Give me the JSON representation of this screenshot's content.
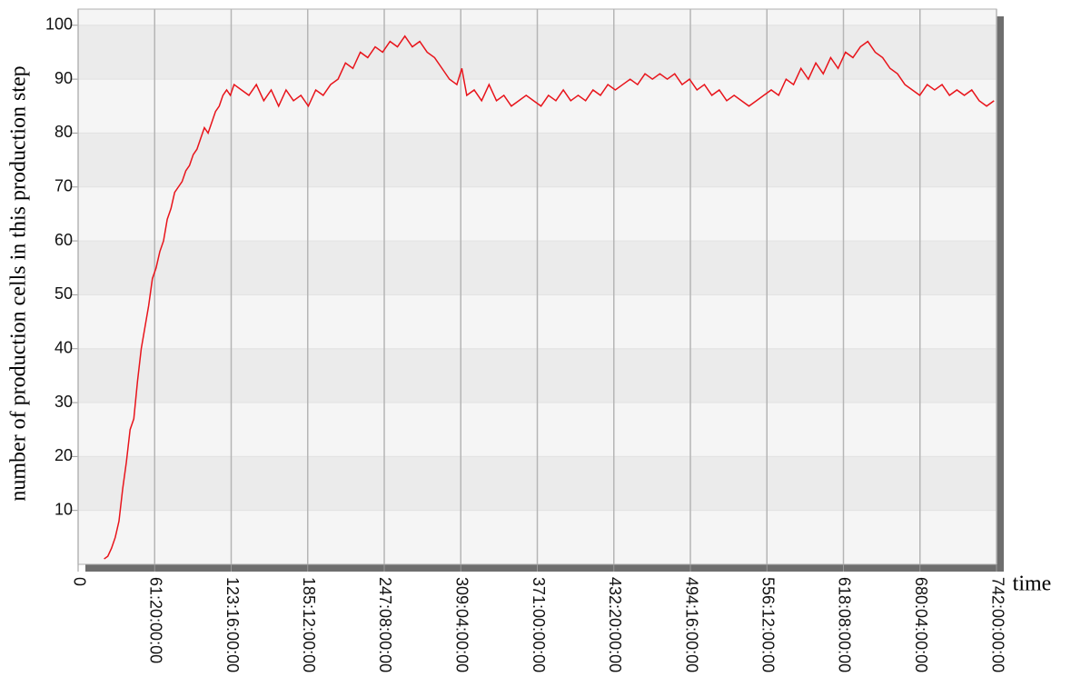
{
  "chart_data": {
    "type": "line",
    "y_label": "number of production cells in this production step",
    "x_label": "time",
    "xlim": [
      0,
      742
    ],
    "ylim": [
      0,
      103
    ],
    "xticks": [
      0,
      {
        "value": 61.8333,
        "label": "61:20:00:00"
      },
      {
        "value": 123.6667,
        "label": "123:16:00:00"
      },
      {
        "value": 185.5,
        "label": "185:12:00:00"
      },
      {
        "value": 247.3333,
        "label": "247:08:00:00"
      },
      {
        "value": 309.1667,
        "label": "309:04:00:00"
      },
      {
        "value": 371,
        "label": "371:00:00:00"
      },
      {
        "value": 432.8333,
        "label": "432:20:00:00"
      },
      {
        "value": 494.6667,
        "label": "494:16:00:00"
      },
      {
        "value": 556.5,
        "label": "556:12:00:00"
      },
      {
        "value": 618.3333,
        "label": "618:08:00:00"
      },
      {
        "value": 680.1667,
        "label": "680:04:00:00"
      },
      {
        "value": 742,
        "label": "742:00:00:00"
      }
    ],
    "yticks": [
      10,
      20,
      30,
      40,
      50,
      60,
      70,
      80,
      90,
      100
    ],
    "grid": true,
    "series": [
      {
        "color": "#e8141b",
        "x": [
          21,
          24,
          27,
          30,
          33,
          36,
          39,
          42,
          45,
          48,
          51,
          54,
          57,
          60,
          63,
          66,
          69,
          72,
          75,
          78,
          81,
          84,
          87,
          90,
          93,
          96,
          99,
          102,
          105,
          108,
          111,
          114,
          117,
          120,
          123,
          126,
          132,
          138,
          144,
          150,
          156,
          162,
          168,
          174,
          180,
          186,
          192,
          198,
          204,
          210,
          216,
          222,
          228,
          234,
          240,
          246,
          252,
          258,
          264,
          270,
          276,
          282,
          288,
          294,
          300,
          306,
          310,
          314,
          320,
          326,
          332,
          338,
          344,
          350,
          356,
          362,
          368,
          374,
          380,
          386,
          392,
          398,
          404,
          410,
          416,
          422,
          428,
          434,
          440,
          446,
          452,
          458,
          464,
          470,
          476,
          482,
          488,
          494,
          500,
          506,
          512,
          518,
          524,
          530,
          536,
          542,
          548,
          554,
          560,
          566,
          572,
          578,
          584,
          590,
          596,
          602,
          608,
          614,
          620,
          626,
          632,
          638,
          644,
          650,
          656,
          662,
          668,
          674,
          680,
          686,
          692,
          698,
          704,
          710,
          716,
          722,
          728,
          734,
          740
        ],
        "values": [
          1,
          1.5,
          3,
          5,
          8,
          14,
          19,
          25,
          27,
          34,
          40,
          44,
          48,
          53,
          55,
          58,
          60,
          64,
          66,
          69,
          70,
          71,
          73,
          74,
          76,
          77,
          79,
          81,
          80,
          82,
          84,
          85,
          87,
          88,
          87,
          89,
          88,
          87,
          89,
          86,
          88,
          85,
          88,
          86,
          87,
          85,
          88,
          87,
          89,
          90,
          93,
          92,
          95,
          94,
          96,
          95,
          97,
          96,
          98,
          96,
          97,
          95,
          94,
          92,
          90,
          89,
          92,
          87,
          88,
          86,
          89,
          86,
          87,
          85,
          86,
          87,
          86,
          85,
          87,
          86,
          88,
          86,
          87,
          86,
          88,
          87,
          89,
          88,
          89,
          90,
          89,
          91,
          90,
          91,
          90,
          91,
          89,
          90,
          88,
          89,
          87,
          88,
          86,
          87,
          86,
          85,
          86,
          87,
          88,
          87,
          90,
          89,
          92,
          90,
          93,
          91,
          94,
          92,
          95,
          94,
          96,
          97,
          95,
          94,
          92,
          91,
          89,
          88,
          87,
          89,
          88,
          89,
          87,
          88,
          87,
          88,
          86,
          85,
          86
        ]
      }
    ]
  }
}
